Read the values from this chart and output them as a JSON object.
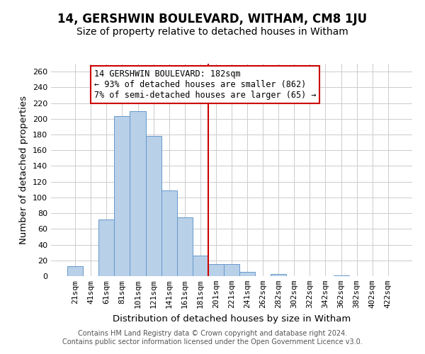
{
  "title": "14, GERSHWIN BOULEVARD, WITHAM, CM8 1JU",
  "subtitle": "Size of property relative to detached houses in Witham",
  "xlabel": "Distribution of detached houses by size in Witham",
  "ylabel": "Number of detached properties",
  "footer_line1": "Contains HM Land Registry data © Crown copyright and database right 2024.",
  "footer_line2": "Contains public sector information licensed under the Open Government Licence v3.0.",
  "annotation_line1": "14 GERSHWIN BOULEVARD: 182sqm",
  "annotation_line2": "← 93% of detached houses are smaller (862)",
  "annotation_line3": "7% of semi-detached houses are larger (65) →",
  "bar_labels": [
    "21sqm",
    "41sqm",
    "61sqm",
    "81sqm",
    "101sqm",
    "121sqm",
    "141sqm",
    "161sqm",
    "181sqm",
    "201sqm",
    "221sqm",
    "241sqm",
    "262sqm",
    "282sqm",
    "302sqm",
    "322sqm",
    "342sqm",
    "362sqm",
    "382sqm",
    "402sqm",
    "422sqm"
  ],
  "bar_values": [
    13,
    0,
    72,
    203,
    210,
    178,
    109,
    75,
    26,
    15,
    15,
    5,
    0,
    3,
    0,
    0,
    0,
    1,
    0,
    0,
    0
  ],
  "bar_color": "#b8d0e8",
  "bar_edge_color": "#6699cc",
  "vline_color": "#cc0000",
  "annotation_box_edge": "#cc0000",
  "ylim": [
    0,
    270
  ],
  "yticks": [
    0,
    20,
    40,
    60,
    80,
    100,
    120,
    140,
    160,
    180,
    200,
    220,
    240,
    260
  ],
  "background_color": "#ffffff",
  "grid_color": "#cccccc",
  "title_fontsize": 12,
  "subtitle_fontsize": 10,
  "axis_label_fontsize": 9.5,
  "tick_fontsize": 8,
  "footer_fontsize": 7,
  "annotation_fontsize": 8.5
}
